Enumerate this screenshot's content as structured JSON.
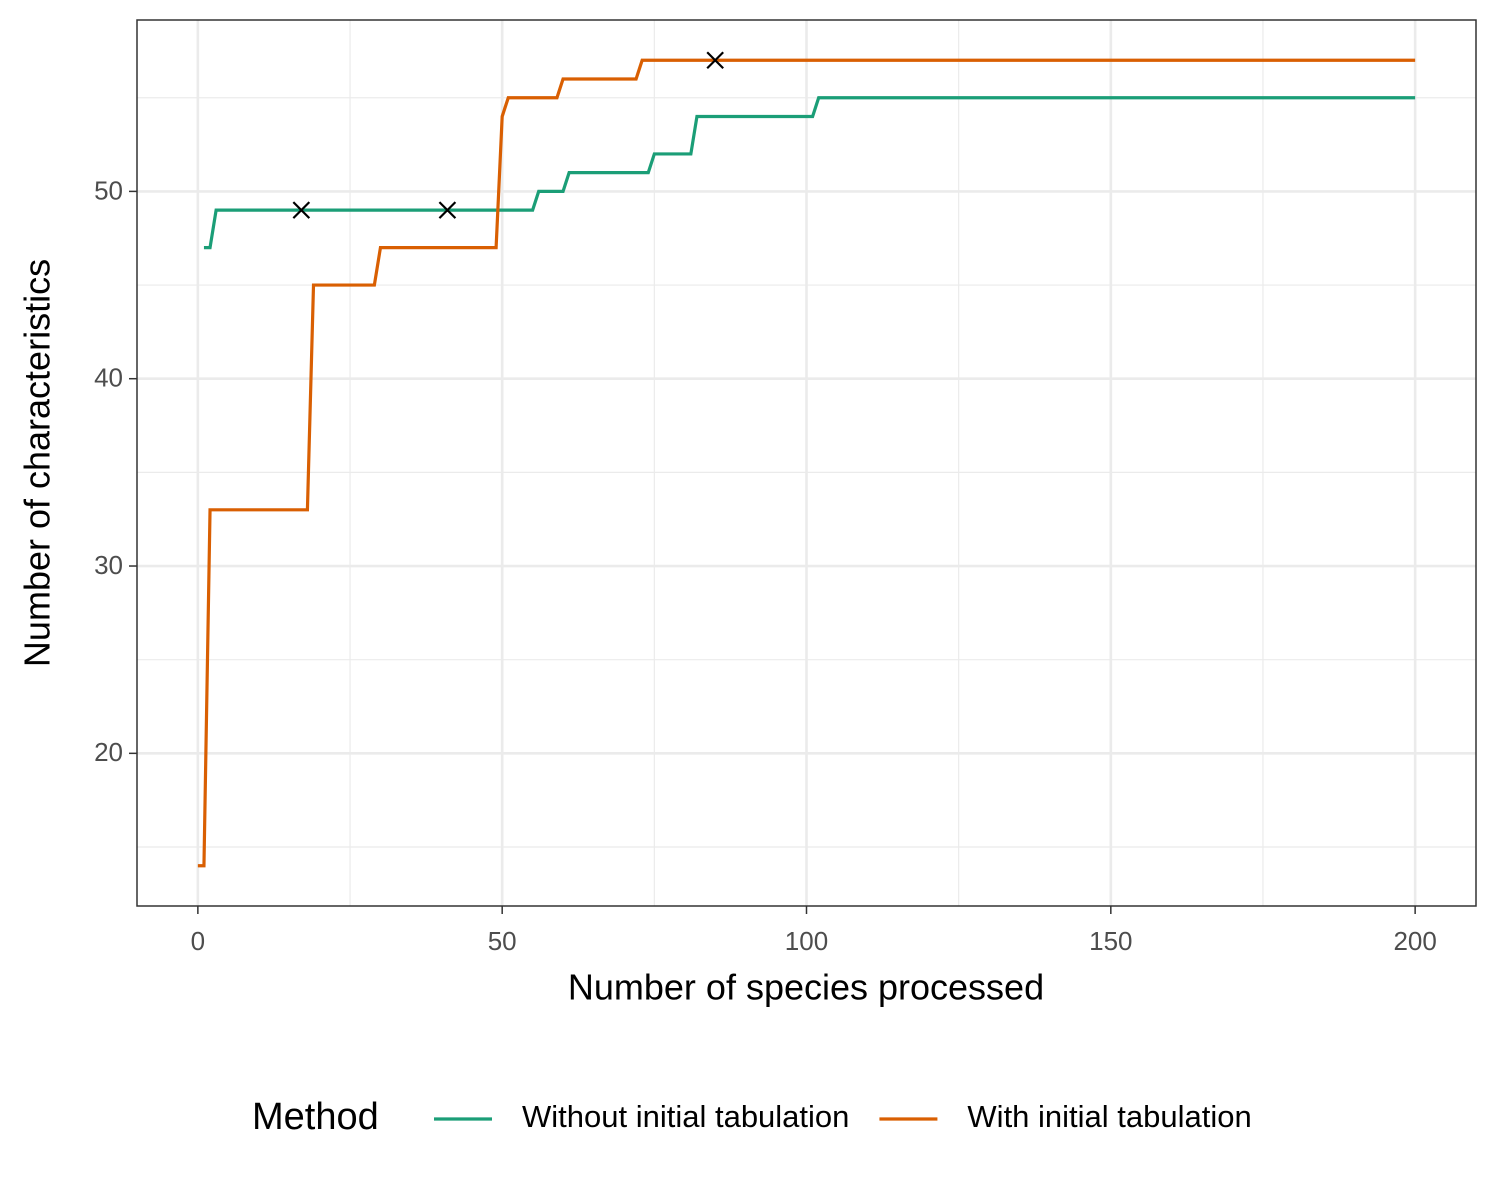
{
  "chart_data": {
    "type": "line",
    "x_label": "Number of species processed",
    "y_label": "Number of characteristics",
    "legend_title": "Method",
    "legend_position": "bottom",
    "xlim": [
      -10,
      210
    ],
    "ylim": [
      11.85,
      59.15
    ],
    "xticks": [
      0,
      50,
      100,
      150,
      200
    ],
    "yticks": [
      20,
      30,
      40,
      50
    ],
    "x_minor_ticks": [
      25,
      75,
      125,
      175
    ],
    "y_minor_ticks": [
      15,
      25,
      35,
      45,
      55
    ],
    "grid": true,
    "series": [
      {
        "name": "Without initial tabulation",
        "color": "#1b9e77",
        "x": [
          1,
          2,
          3,
          55,
          56,
          60,
          61,
          74,
          75,
          81,
          82,
          101,
          102,
          200
        ],
        "values": [
          47,
          47,
          49,
          49,
          50,
          50,
          51,
          51,
          52,
          52,
          54,
          54,
          55,
          55
        ]
      },
      {
        "name": "With initial tabulation",
        "color": "#d95f02",
        "x": [
          0,
          1,
          2,
          18,
          19,
          29,
          30,
          49,
          50,
          51,
          59,
          60,
          72,
          73,
          200
        ],
        "values": [
          14,
          14,
          33,
          33,
          45,
          45,
          47,
          47,
          54,
          55,
          55,
          56,
          56,
          57,
          57
        ]
      }
    ],
    "markers": {
      "color": "#000000",
      "x": [
        17,
        41,
        85
      ],
      "values": [
        49,
        49,
        57
      ]
    }
  }
}
